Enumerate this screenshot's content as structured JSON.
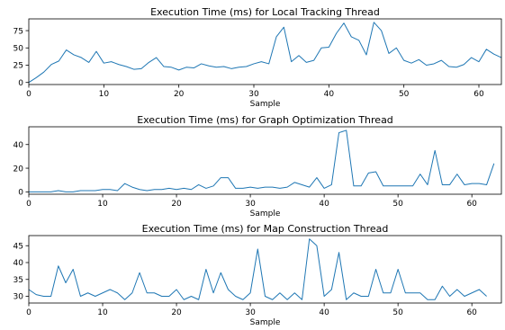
{
  "colors": {
    "line": "#1f77b4",
    "axis": "#000000",
    "background": "#ffffff"
  },
  "chart_data": [
    {
      "type": "line",
      "title": "Execution Time (ms) for Local Tracking Thread",
      "xlabel": "Sample",
      "ylabel": "",
      "xlim": [
        0,
        63
      ],
      "ylim": [
        -3,
        92
      ],
      "xticks": [
        0,
        10,
        20,
        30,
        40,
        50,
        60
      ],
      "yticks": [
        0,
        25,
        50,
        75
      ],
      "grid": false,
      "series": [
        {
          "values": [
            0,
            7,
            15,
            26,
            31,
            47,
            40,
            36,
            29,
            45,
            28,
            30,
            26,
            23,
            19,
            20,
            29,
            36,
            23,
            22,
            18,
            22,
            21,
            27,
            24,
            22,
            23,
            20,
            22,
            23,
            27,
            30,
            27,
            66,
            80,
            30,
            39,
            29,
            32,
            50,
            51,
            71,
            86,
            66,
            61,
            40,
            87,
            75,
            42,
            50,
            32,
            28,
            33,
            25,
            27,
            32,
            23,
            22,
            26,
            36,
            30,
            48,
            41,
            36
          ]
        }
      ]
    },
    {
      "type": "line",
      "title": "Execution Time (ms) for Graph Optimization Thread",
      "xlabel": "Sample",
      "ylabel": "",
      "xlim": [
        0,
        64
      ],
      "ylim": [
        -2,
        55
      ],
      "xticks": [
        0,
        10,
        20,
        30,
        40,
        50,
        60
      ],
      "yticks": [
        0,
        20,
        40
      ],
      "grid": false,
      "series": [
        {
          "values": [
            0,
            0,
            0,
            0,
            1,
            0,
            0,
            1,
            1,
            1,
            2,
            2,
            1,
            7,
            4,
            2,
            1,
            2,
            2,
            3,
            2,
            3,
            2,
            6,
            3,
            5,
            12,
            12,
            3,
            3,
            4,
            3,
            4,
            4,
            3,
            4,
            8,
            6,
            4,
            12,
            3,
            6,
            50,
            52,
            5,
            5,
            16,
            17,
            5,
            5,
            5,
            5,
            5,
            15,
            6,
            35,
            6,
            6,
            15,
            6,
            7,
            7,
            6,
            24
          ]
        }
      ]
    },
    {
      "type": "line",
      "title": "Execution Time (ms) for Map Construction Thread",
      "xlabel": "Sample",
      "ylabel": "",
      "xlim": [
        0,
        64
      ],
      "ylim": [
        28,
        48
      ],
      "xticks": [
        0,
        10,
        20,
        30,
        40,
        50,
        60
      ],
      "yticks": [
        30,
        35,
        40,
        45
      ],
      "grid": false,
      "series": [
        {
          "values": [
            32,
            30.5,
            30,
            30,
            39,
            34,
            38,
            30,
            31,
            30,
            31,
            32,
            31,
            29,
            31,
            37,
            31,
            31,
            30,
            30,
            32,
            29,
            30,
            29,
            38,
            31,
            37,
            32,
            30,
            29,
            31,
            44,
            30,
            29,
            31,
            29,
            31,
            29,
            47,
            45,
            30,
            32,
            43,
            29,
            31,
            30,
            30,
            38,
            31,
            31,
            38,
            31,
            31,
            31,
            29,
            29,
            33,
            30,
            32,
            30,
            31,
            32,
            30
          ]
        }
      ]
    }
  ]
}
